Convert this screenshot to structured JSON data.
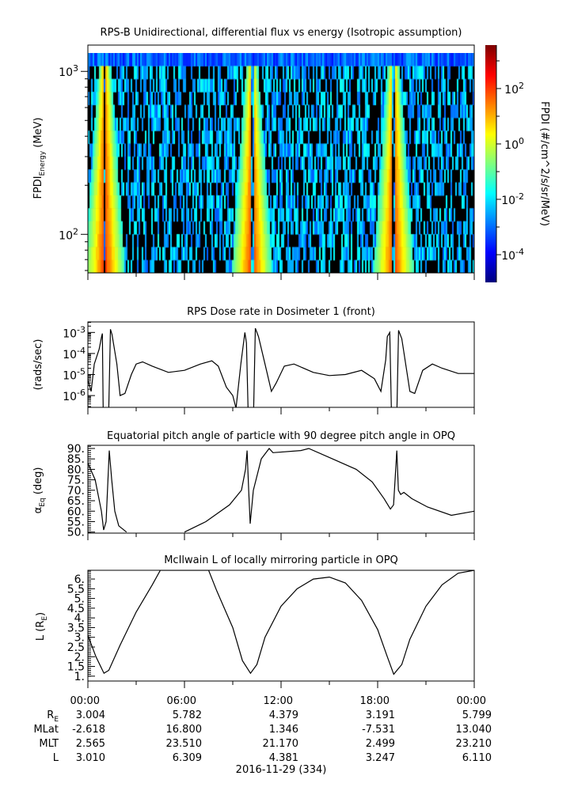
{
  "chart_data": [
    {
      "type": "heatmap",
      "title": "RPS-B  Unidirectional, differential flux vs energy (Isotropic assumption)",
      "ylabel_main": "FPDI",
      "ylabel_sub": "Energy",
      "ylabel_unit": " (MeV)",
      "yscale": "log",
      "ylim": [
        58,
        1450
      ],
      "yticks": [
        {
          "base": "10",
          "exp": "3",
          "value": 1000
        },
        {
          "base": "10",
          "exp": "2",
          "value": 100
        }
      ],
      "xlim_hours": [
        0,
        24
      ],
      "enhancement_peaks_hours": [
        1.05,
        10.2,
        19.0
      ],
      "colorbar": {
        "label": "FPDI (#/cm^2/s/sr/MeV)",
        "scale": "log",
        "range_log10": [
          -5.0,
          3.57
        ],
        "ticks": [
          {
            "base": "10",
            "exp": "2",
            "value": 2
          },
          {
            "base": "10",
            "exp": "0",
            "value": 0
          },
          {
            "base": "10",
            "exp": "-2",
            "value": -2
          },
          {
            "base": "10",
            "exp": "-4",
            "value": -4
          }
        ]
      }
    },
    {
      "type": "line",
      "title": "RPS  Dose rate in Dosimeter 1 (front)",
      "ylabel": "(rads/sec)",
      "yscale": "log",
      "ylim_log10": [
        -6.56,
        -2.5
      ],
      "yticks": [
        {
          "base": "10",
          "exp": "-3",
          "value": -3
        },
        {
          "base": "10",
          "exp": "-4",
          "value": -4
        },
        {
          "base": "10",
          "exp": "-5",
          "value": -5
        },
        {
          "base": "10",
          "exp": "-6",
          "value": -6
        }
      ],
      "series": [
        {
          "name": "dose rate (log10 rads/sec)",
          "x_hours": [
            0,
            0.2,
            0.4,
            0.7,
            0.85,
            0.9,
            0.95,
            1.3,
            1.4,
            1.5,
            1.8,
            2.0,
            2.3,
            2.7,
            3.0,
            3.4,
            4.0,
            5.0,
            6.0,
            7.0,
            7.7,
            8.1,
            8.6,
            9.0,
            9.2,
            9.5,
            9.75,
            9.85,
            9.95,
            10.3,
            10.4,
            10.6,
            11.0,
            11.4,
            11.7,
            12.2,
            12.8,
            14.0,
            15.0,
            16.0,
            17.0,
            17.8,
            18.2,
            18.5,
            18.6,
            18.75,
            18.85,
            19.2,
            19.3,
            19.5,
            20.0,
            20.3,
            20.8,
            21.4,
            22.0,
            23.0,
            24.0
          ],
          "y_log10": [
            -5.25,
            -5.8,
            -4.5,
            -3.8,
            -3.2,
            -3.05,
            -6.6,
            -6.6,
            -2.85,
            -3.1,
            -4.5,
            -6.0,
            -5.9,
            -5.0,
            -4.5,
            -4.4,
            -4.6,
            -4.9,
            -4.8,
            -4.5,
            -4.35,
            -4.6,
            -5.6,
            -6.0,
            -6.6,
            -4.5,
            -3.0,
            -3.5,
            -6.6,
            -6.6,
            -2.8,
            -3.2,
            -4.5,
            -5.8,
            -5.4,
            -4.6,
            -4.5,
            -4.9,
            -5.05,
            -5.0,
            -4.8,
            -5.2,
            -5.8,
            -4.3,
            -3.2,
            -3.0,
            -6.6,
            -6.6,
            -2.9,
            -3.3,
            -5.8,
            -5.9,
            -4.8,
            -4.5,
            -4.7,
            -4.95,
            -4.95
          ]
        }
      ]
    },
    {
      "type": "line",
      "title": "Equatorial pitch angle of particle with 90 degree pitch angle in OPQ",
      "ylabel_main": "α",
      "ylabel_sub": "Eq",
      "ylabel_unit": " (deg)",
      "ylim": [
        49.5,
        91.5
      ],
      "yticks": [
        "90.",
        "85.",
        "80.",
        "75.",
        "70.",
        "65.",
        "60.",
        "55.",
        "50."
      ],
      "series": [
        {
          "name": "alpha_eq",
          "segments": [
            {
              "x_hours": [
                0,
                0.45,
                0.84,
                0.98,
                1.13,
                1.33,
                1.48,
                1.67,
                1.92,
                2.4
              ],
              "y": [
                83,
                75,
                60,
                51,
                55,
                89,
                75,
                60,
                53,
                50
              ]
            },
            {
              "x_hours": [
                6.0,
                7.33,
                8.8,
                9.54,
                9.79,
                9.89,
                9.99,
                10.08,
                10.28,
                10.77,
                11.26,
                11.5,
                13.23,
                13.72,
                15.2,
                16.67,
                17.66,
                18.4,
                18.79,
                18.99,
                19.19,
                19.29,
                19.43,
                19.63,
                20.12,
                21.1,
                22.58,
                24.0
              ],
              "y": [
                50,
                55,
                63,
                70,
                80,
                89,
                70,
                54,
                70,
                85,
                90,
                88,
                89,
                90,
                85,
                80,
                74,
                66,
                61,
                63,
                89,
                70,
                68,
                69,
                66,
                62,
                58,
                60
              ]
            }
          ]
        }
      ]
    },
    {
      "type": "line",
      "title": "McIlwain L of locally mirroring particle in OPQ",
      "ylabel_main": "L (R",
      "ylabel_sub": "E",
      "ylabel_unit": ")",
      "ylim": [
        0.75,
        6.45
      ],
      "yticks": [
        "6.",
        "5.5",
        "5.",
        "4.5",
        "4.",
        "3.5",
        "3.",
        "2.5",
        "2.",
        "1.5",
        "1."
      ],
      "series": [
        {
          "name": "L",
          "x_hours": [
            0,
            0.5,
            1.0,
            1.3,
            2,
            3,
            4,
            4.5,
            7.5,
            8,
            9,
            9.6,
            10.1,
            10.5,
            11,
            12,
            13,
            14,
            15,
            16,
            17,
            18,
            18.6,
            19.0,
            19.5,
            20,
            21,
            22,
            23,
            24
          ],
          "y": [
            3.1,
            2.0,
            1.15,
            1.3,
            2.6,
            4.3,
            5.7,
            6.45,
            6.45,
            5.4,
            3.5,
            1.8,
            1.15,
            1.6,
            3.0,
            4.6,
            5.5,
            6.0,
            6.1,
            5.8,
            4.9,
            3.4,
            2.0,
            1.1,
            1.6,
            2.9,
            4.6,
            5.7,
            6.3,
            6.45
          ]
        }
      ]
    }
  ],
  "xaxis": {
    "ticks": [
      "00:00",
      "06:00",
      "12:00",
      "18:00",
      "00:00"
    ],
    "rows": [
      {
        "label_main": "R",
        "label_sub": "E",
        "values": [
          "3.004",
          "5.782",
          "4.379",
          "3.191",
          "5.799"
        ]
      },
      {
        "label_main": "MLat",
        "label_sub": "",
        "values": [
          "-2.618",
          "16.800",
          "1.346",
          "-7.531",
          "13.040"
        ]
      },
      {
        "label_main": "MLT",
        "label_sub": "",
        "values": [
          "2.565",
          "23.510",
          "21.170",
          "2.499",
          "23.210"
        ]
      },
      {
        "label_main": "L",
        "label_sub": "",
        "values": [
          "3.010",
          "6.309",
          "4.381",
          "3.247",
          "6.110"
        ]
      }
    ],
    "date_label": "2016-11-29 (334)"
  }
}
